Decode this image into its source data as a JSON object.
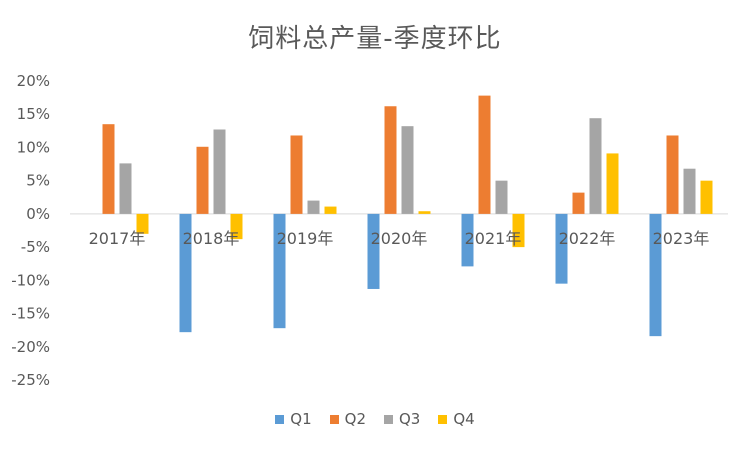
{
  "chart_data": {
    "type": "bar",
    "title": "饲料总产量-季度环比",
    "categories": [
      "2017年",
      "2018年",
      "2019年",
      "2020年",
      "2021年",
      "2022年",
      "2023年"
    ],
    "series": [
      {
        "name": "Q1",
        "color": "#5B9BD5",
        "values": [
          0,
          -17.8,
          -17.2,
          -11.3,
          -7.9,
          -10.5,
          -18.4
        ]
      },
      {
        "name": "Q2",
        "color": "#ED7D31",
        "values": [
          13.5,
          10.1,
          11.8,
          16.2,
          17.8,
          3.2,
          11.8
        ]
      },
      {
        "name": "Q3",
        "color": "#A5A5A5",
        "values": [
          7.6,
          12.7,
          2.0,
          13.2,
          5.0,
          14.4,
          6.8
        ]
      },
      {
        "name": "Q4",
        "color": "#FFC000",
        "values": [
          -3.0,
          -3.8,
          1.1,
          0.4,
          -5.0,
          9.1,
          5.0
        ]
      }
    ],
    "yticks": [
      "20%",
      "15%",
      "10%",
      "5%",
      "0%",
      "-5%",
      "-10%",
      "-15%",
      "-20%",
      "-25%"
    ],
    "ylim": [
      -25,
      20
    ],
    "grid": false,
    "legend_position": "bottom"
  }
}
